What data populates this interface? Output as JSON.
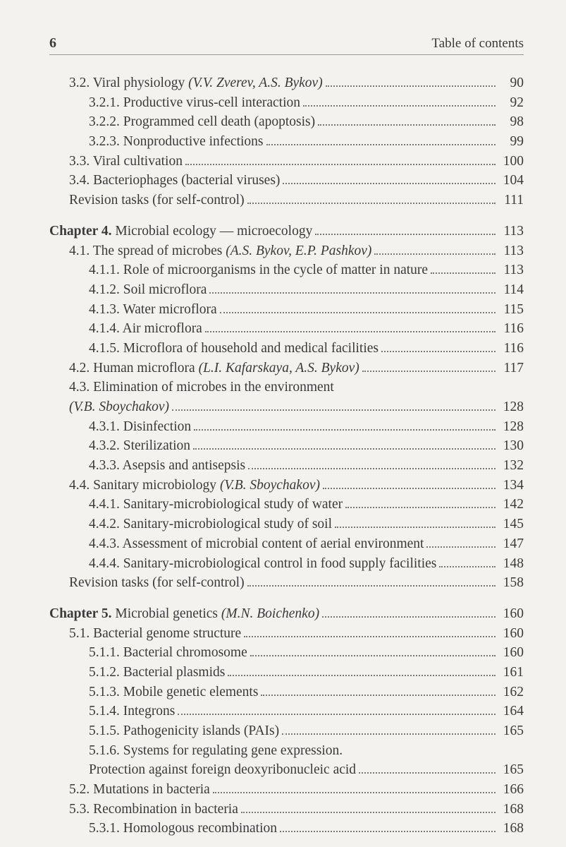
{
  "pageNumber": "6",
  "headerTitle": "Table of contents",
  "blocks": [
    {
      "entries": [
        {
          "indent": 1,
          "prefix": "",
          "text": "3.2. Viral physiology ",
          "authors": "(V.V. Zverev, A.S. Bykov)",
          "page": "90"
        },
        {
          "indent": 2,
          "prefix": "",
          "text": "3.2.1. Productive virus-cell interaction",
          "authors": "",
          "page": "92"
        },
        {
          "indent": 2,
          "prefix": "",
          "text": "3.2.2. Programmed cell death (apoptosis)",
          "authors": "",
          "page": "98"
        },
        {
          "indent": 2,
          "prefix": "",
          "text": "3.2.3. Nonproductive infections",
          "authors": "",
          "page": "99"
        },
        {
          "indent": 1,
          "prefix": "",
          "text": "3.3. Viral cultivation",
          "authors": "",
          "page": "100"
        },
        {
          "indent": 1,
          "prefix": "",
          "text": "3.4. Bacteriophages (bacterial viruses)",
          "authors": "",
          "page": "104"
        },
        {
          "indent": 1,
          "prefix": "",
          "text": "Revision tasks (for self-control)",
          "authors": "",
          "page": "111"
        }
      ]
    },
    {
      "entries": [
        {
          "indent": 0,
          "prefix": "Chapter 4. ",
          "text": "Microbial ecology — microecology",
          "authors": "",
          "page": "113"
        },
        {
          "indent": 1,
          "prefix": "",
          "text": "4.1. The spread of microbes ",
          "authors": "(A.S. Bykov, E.P. Pashkov)",
          "page": "113"
        },
        {
          "indent": 2,
          "prefix": "",
          "text": "4.1.1. Role of microorganisms in the cycle of matter in nature",
          "authors": "",
          "page": "113"
        },
        {
          "indent": 2,
          "prefix": "",
          "text": "4.1.2. Soil microflora",
          "authors": "",
          "page": "114"
        },
        {
          "indent": 2,
          "prefix": "",
          "text": "4.1.3. Water microflora",
          "authors": "",
          "page": "115"
        },
        {
          "indent": 2,
          "prefix": "",
          "text": "4.1.4. Air microflora",
          "authors": "",
          "page": "116"
        },
        {
          "indent": 2,
          "prefix": "",
          "text": "4.1.5. Microflora of household and medical facilities",
          "authors": "",
          "page": "116"
        },
        {
          "indent": 1,
          "prefix": "",
          "text": "4.2. Human microflora ",
          "authors": "(L.I. Kafarskaya, A.S. Bykov)",
          "page": "117"
        },
        {
          "indent": 1,
          "prefix": "",
          "text": "4.3. Elimination of microbes in the environment",
          "authors": "",
          "page": "",
          "nodots": true
        },
        {
          "indent": 1,
          "prefix": "",
          "text": "",
          "authors": "(V.B. Sboychakov)",
          "page": "128"
        },
        {
          "indent": 2,
          "prefix": "",
          "text": "4.3.1. Disinfection",
          "authors": "",
          "page": "128"
        },
        {
          "indent": 2,
          "prefix": "",
          "text": "4.3.2. Sterilization",
          "authors": "",
          "page": "130"
        },
        {
          "indent": 2,
          "prefix": "",
          "text": "4.3.3. Asepsis and antisepsis",
          "authors": "",
          "page": "132"
        },
        {
          "indent": 1,
          "prefix": "",
          "text": "4.4. Sanitary microbiology ",
          "authors": "(V.B. Sboychakov)",
          "page": "134"
        },
        {
          "indent": 2,
          "prefix": "",
          "text": "4.4.1. Sanitary-microbiological study of water",
          "authors": "",
          "page": "142"
        },
        {
          "indent": 2,
          "prefix": "",
          "text": "4.4.2. Sanitary-microbiological study of soil",
          "authors": "",
          "page": "145"
        },
        {
          "indent": 2,
          "prefix": "",
          "text": "4.4.3. Assessment of microbial content of aerial environment",
          "authors": "",
          "page": "147"
        },
        {
          "indent": 2,
          "prefix": "",
          "text": "4.4.4. Sanitary-microbiological control in food supply facilities",
          "authors": "",
          "page": "148"
        },
        {
          "indent": 1,
          "prefix": "",
          "text": "Revision tasks (for self-control)",
          "authors": "",
          "page": "158"
        }
      ]
    },
    {
      "entries": [
        {
          "indent": 0,
          "prefix": "Chapter 5. ",
          "text": "Microbial genetics ",
          "authors": "(M.N. Boichenko)",
          "page": "160"
        },
        {
          "indent": 1,
          "prefix": "",
          "text": "5.1. Bacterial genome structure",
          "authors": "",
          "page": "160"
        },
        {
          "indent": 2,
          "prefix": "",
          "text": "5.1.1. Bacterial chromosome",
          "authors": "",
          "page": "160"
        },
        {
          "indent": 2,
          "prefix": "",
          "text": "5.1.2. Bacterial plasmids",
          "authors": "",
          "page": "161"
        },
        {
          "indent": 2,
          "prefix": "",
          "text": "5.1.3. Mobile genetic elements",
          "authors": "",
          "page": "162"
        },
        {
          "indent": 2,
          "prefix": "",
          "text": "5.1.4. Integrons",
          "authors": "",
          "page": "164"
        },
        {
          "indent": 2,
          "prefix": "",
          "text": "5.1.5. Pathogenicity islands (PAIs)",
          "authors": "",
          "page": "165"
        },
        {
          "indent": 2,
          "prefix": "",
          "text": "5.1.6. Systems for regulating gene expression.",
          "authors": "",
          "page": "",
          "nodots": true
        },
        {
          "indent": 2,
          "prefix": "",
          "text": "Protection against foreign deoxyribonucleic acid",
          "authors": "",
          "page": "165"
        },
        {
          "indent": 1,
          "prefix": "",
          "text": "5.2. Mutations in bacteria",
          "authors": "",
          "page": "166"
        },
        {
          "indent": 1,
          "prefix": "",
          "text": "5.3. Recombination in bacteria",
          "authors": "",
          "page": "168"
        },
        {
          "indent": 2,
          "prefix": "",
          "text": "5.3.1. Homologous recombination",
          "authors": "",
          "page": "168"
        }
      ]
    }
  ]
}
